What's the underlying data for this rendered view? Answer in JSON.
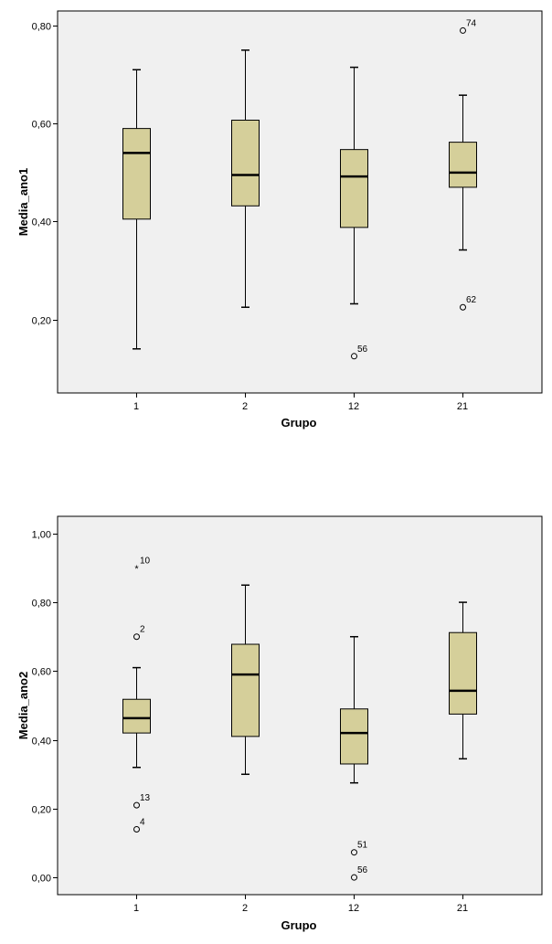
{
  "colors": {
    "plot_background": "#f0f0f0",
    "box_fill": "#d5cf9a",
    "line": "#000000"
  },
  "chart_data": [
    {
      "type": "boxplot",
      "xlabel": "Grupo",
      "ylabel": "Media_ano1",
      "ylim": [
        0.05,
        0.83
      ],
      "yticks": [
        0.2,
        0.4,
        0.6,
        0.8
      ],
      "ytick_labels": [
        "0,20",
        "0,40",
        "0,60",
        "0,80"
      ],
      "categories": [
        "1",
        "2",
        "12",
        "21"
      ],
      "boxes": [
        {
          "group": "1",
          "whisker_low": 0.14,
          "q1": 0.405,
          "median": 0.54,
          "q3": 0.59,
          "whisker_high": 0.71,
          "outliers": []
        },
        {
          "group": "2",
          "whisker_low": 0.225,
          "q1": 0.432,
          "median": 0.495,
          "q3": 0.607,
          "whisker_high": 0.75,
          "outliers": []
        },
        {
          "group": "12",
          "whisker_low": 0.232,
          "q1": 0.388,
          "median": 0.492,
          "q3": 0.547,
          "whisker_high": 0.715,
          "outliers": [
            {
              "value": 0.125,
              "label": "56",
              "marker": "circle"
            }
          ]
        },
        {
          "group": "21",
          "whisker_low": 0.342,
          "q1": 0.47,
          "median": 0.5,
          "q3": 0.562,
          "whisker_high": 0.658,
          "outliers": [
            {
              "value": 0.79,
              "label": "74",
              "marker": "circle"
            },
            {
              "value": 0.225,
              "label": "62",
              "marker": "circle"
            }
          ]
        }
      ]
    },
    {
      "type": "boxplot",
      "xlabel": "Grupo",
      "ylabel": "Media_ano2",
      "ylim": [
        -0.05,
        1.05
      ],
      "yticks": [
        0.0,
        0.2,
        0.4,
        0.6,
        0.8,
        1.0
      ],
      "ytick_labels": [
        "0,00",
        "0,20",
        "0,40",
        "0,60",
        "0,80",
        "1,00"
      ],
      "categories": [
        "1",
        "2",
        "12",
        "21"
      ],
      "boxes": [
        {
          "group": "1",
          "whisker_low": 0.32,
          "q1": 0.42,
          "median": 0.463,
          "q3": 0.518,
          "whisker_high": 0.61,
          "outliers": [
            {
              "value": 0.9,
              "label": "10",
              "marker": "star"
            },
            {
              "value": 0.7,
              "label": "2",
              "marker": "circle"
            },
            {
              "value": 0.21,
              "label": "13",
              "marker": "circle"
            },
            {
              "value": 0.14,
              "label": "4",
              "marker": "circle"
            }
          ]
        },
        {
          "group": "2",
          "whisker_low": 0.3,
          "q1": 0.41,
          "median": 0.59,
          "q3": 0.678,
          "whisker_high": 0.85,
          "outliers": []
        },
        {
          "group": "12",
          "whisker_low": 0.275,
          "q1": 0.33,
          "median": 0.42,
          "q3": 0.49,
          "whisker_high": 0.7,
          "outliers": [
            {
              "value": 0.073,
              "label": "51",
              "marker": "circle"
            },
            {
              "value": 0.0,
              "label": "56",
              "marker": "circle"
            }
          ]
        },
        {
          "group": "21",
          "whisker_low": 0.345,
          "q1": 0.475,
          "median": 0.543,
          "q3": 0.712,
          "whisker_high": 0.8,
          "outliers": []
        }
      ]
    }
  ]
}
